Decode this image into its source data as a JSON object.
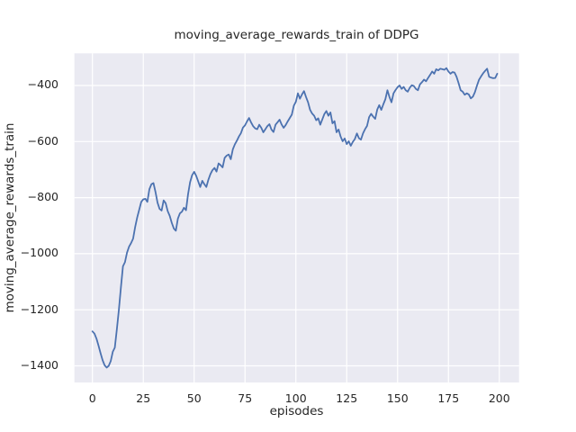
{
  "chart_data": {
    "type": "line",
    "title": "moving_average_rewards_train of DDPG",
    "xlabel": "episodes",
    "ylabel": "moving_average_rewards_train",
    "legend": "none",
    "grid": true,
    "xlim": [
      -8.85,
      209.7
    ],
    "ylim": [
      -1459.4,
      -285.4
    ],
    "xticks": {
      "values": [
        0,
        25,
        50,
        75,
        100,
        125,
        150,
        175,
        200
      ],
      "labels": [
        "0",
        "25",
        "50",
        "75",
        "100",
        "125",
        "150",
        "175",
        "200"
      ]
    },
    "yticks": {
      "values": [
        -400,
        -600,
        -800,
        -1000,
        -1200,
        -1400
      ],
      "labels": [
        "−400",
        "−600",
        "−800",
        "−1000",
        "−1200",
        "−1400"
      ]
    },
    "x_start": 0,
    "x_step": 1,
    "series": [
      {
        "name": "moving_average_rewards_train",
        "color": "#4c72b0",
        "values": [
          -1277,
          -1285,
          -1303,
          -1328,
          -1355,
          -1380,
          -1398,
          -1406,
          -1400,
          -1383,
          -1350,
          -1335,
          -1270,
          -1200,
          -1120,
          -1045,
          -1030,
          -996,
          -975,
          -962,
          -946,
          -905,
          -871,
          -843,
          -815,
          -806,
          -804,
          -815,
          -770,
          -752,
          -748,
          -780,
          -818,
          -840,
          -846,
          -810,
          -820,
          -848,
          -865,
          -890,
          -910,
          -918,
          -875,
          -856,
          -850,
          -836,
          -845,
          -788,
          -745,
          -720,
          -708,
          -722,
          -742,
          -762,
          -740,
          -752,
          -762,
          -736,
          -716,
          -702,
          -694,
          -707,
          -678,
          -684,
          -692,
          -658,
          -650,
          -646,
          -663,
          -628,
          -610,
          -597,
          -582,
          -570,
          -550,
          -542,
          -528,
          -516,
          -532,
          -545,
          -553,
          -556,
          -540,
          -551,
          -567,
          -556,
          -545,
          -538,
          -557,
          -566,
          -540,
          -531,
          -522,
          -539,
          -551,
          -541,
          -528,
          -516,
          -504,
          -472,
          -458,
          -428,
          -447,
          -432,
          -420,
          -441,
          -460,
          -487,
          -500,
          -508,
          -524,
          -517,
          -540,
          -521,
          -502,
          -491,
          -508,
          -496,
          -535,
          -527,
          -567,
          -557,
          -582,
          -599,
          -589,
          -609,
          -599,
          -615,
          -601,
          -591,
          -571,
          -588,
          -593,
          -571,
          -556,
          -544,
          -513,
          -501,
          -511,
          -519,
          -486,
          -470,
          -487,
          -467,
          -449,
          -417,
          -441,
          -460,
          -428,
          -416,
          -406,
          -400,
          -412,
          -405,
          -417,
          -422,
          -408,
          -399,
          -402,
          -412,
          -417,
          -396,
          -388,
          -379,
          -385,
          -373,
          -362,
          -350,
          -358,
          -342,
          -346,
          -340,
          -342,
          -344,
          -338,
          -350,
          -358,
          -352,
          -354,
          -369,
          -392,
          -417,
          -422,
          -433,
          -428,
          -432,
          -446,
          -440,
          -424,
          -401,
          -380,
          -368,
          -357,
          -348,
          -340,
          -369,
          -372,
          -374,
          -373,
          -358
        ]
      }
    ],
    "style": {
      "figure_background": "#ffffff",
      "axes_background": "#eaeaf2",
      "grid_color": "#ffffff",
      "text_color": "#262626",
      "line_width": 1.8
    }
  }
}
